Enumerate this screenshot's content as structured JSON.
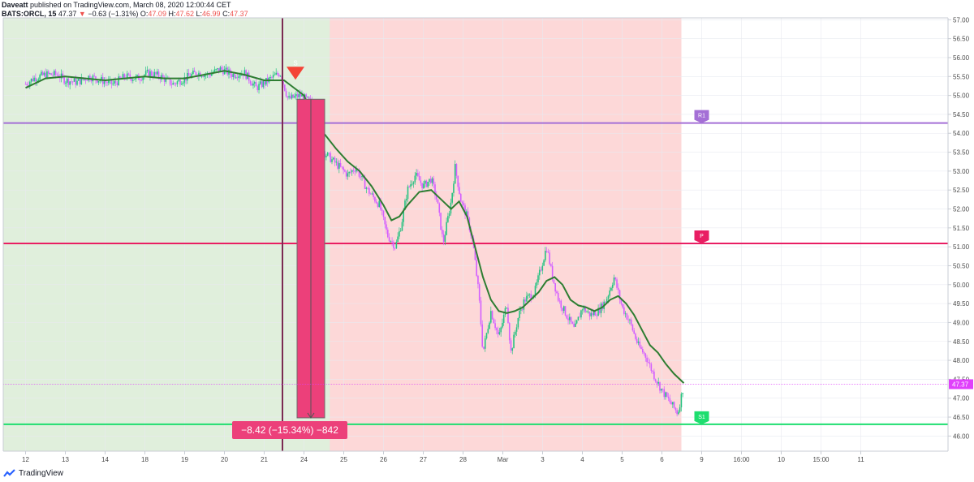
{
  "header": {
    "author": "Daveatt",
    "published": "published on TradingView.com, March 08, 2020 12:00:44 CET",
    "symbol": "BATS:ORCL, 15",
    "last": "47.37",
    "change_arrow": "▼",
    "change": "−0.63 (−1.31%)",
    "o_label": "O:",
    "o_value": "47.09",
    "h_label": "H:",
    "h_value": "47.62",
    "l_label": "L:",
    "l_value": "46.99",
    "c_label": "C:",
    "c_value": "47.37"
  },
  "footer": {
    "brand": "TradingView"
  },
  "colors": {
    "bull": "#26c281",
    "bear": "#d35fff",
    "ma": "#2e7d32",
    "green_zone": "#e0efdc",
    "red_zone": "#fdd8d8",
    "r1": "#a46fd6",
    "pivot": "#e91e63",
    "s1": "#1ede6f",
    "trade_box": "#ec407a",
    "signal_line": "#7b2a52",
    "price_label": "#e040fb"
  },
  "chart_data": {
    "type": "candlestick",
    "title": "",
    "ylim": [
      45.6,
      57.05
    ],
    "y_ticks": [
      "57.00",
      "56.50",
      "56.00",
      "55.50",
      "55.00",
      "54.50",
      "54.00",
      "53.50",
      "53.00",
      "52.50",
      "52.00",
      "51.50",
      "51.00",
      "50.50",
      "50.00",
      "49.50",
      "49.00",
      "48.50",
      "48.00",
      "47.50",
      "47.00",
      "46.50",
      "46.00"
    ],
    "x_ticks": [
      "12",
      "13",
      "14",
      "18",
      "19",
      "20",
      "21",
      "24",
      "25",
      "26",
      "27",
      "28",
      "Mar",
      "3",
      "4",
      "5",
      "6",
      "9",
      "16:00",
      "10",
      "15:00",
      "11"
    ],
    "last_price": "47.37",
    "levels": [
      {
        "name": "R1",
        "value": 54.27
      },
      {
        "name": "P",
        "value": 51.09
      },
      {
        "name": "S1",
        "value": 46.31
      }
    ],
    "signal": {
      "label": "S",
      "direction": "short",
      "x_session": 6.5,
      "price": 55.5
    },
    "trade": {
      "entry": 54.9,
      "exit": 46.48,
      "label": "−8.42 (−15.34%) −842"
    },
    "zones": [
      {
        "kind": "long",
        "from_session": 0,
        "to_session": 8.2
      },
      {
        "kind": "short",
        "from_session": 8.2,
        "to_session": 17
      }
    ],
    "close_path": [
      [
        0,
        55.3
      ],
      [
        0.2,
        55.45
      ],
      [
        0.5,
        55.55
      ],
      [
        0.8,
        55.55
      ],
      [
        1.0,
        55.4
      ],
      [
        1.3,
        55.35
      ],
      [
        1.6,
        55.5
      ],
      [
        1.9,
        55.4
      ],
      [
        2.2,
        55.3
      ],
      [
        2.5,
        55.5
      ],
      [
        2.8,
        55.45
      ],
      [
        3.1,
        55.6
      ],
      [
        3.4,
        55.5
      ],
      [
        3.7,
        55.3
      ],
      [
        4.0,
        55.45
      ],
      [
        4.3,
        55.6
      ],
      [
        4.6,
        55.55
      ],
      [
        4.9,
        55.7
      ],
      [
        5.2,
        55.55
      ],
      [
        5.5,
        55.6
      ],
      [
        5.8,
        55.2
      ],
      [
        6.1,
        55.4
      ],
      [
        6.4,
        55.6
      ],
      [
        6.6,
        54.9
      ],
      [
        6.9,
        55.0
      ],
      [
        7.2,
        54.8
      ],
      [
        7.5,
        53.5
      ],
      [
        7.8,
        53.2
      ],
      [
        8.1,
        52.9
      ],
      [
        8.3,
        53.1
      ],
      [
        8.6,
        52.5
      ],
      [
        8.9,
        52.1
      ],
      [
        9.1,
        51.3
      ],
      [
        9.3,
        51.0
      ],
      [
        9.45,
        51.6
      ],
      [
        9.6,
        52.5
      ],
      [
        9.8,
        52.9
      ],
      [
        10.0,
        52.6
      ],
      [
        10.2,
        52.8
      ],
      [
        10.35,
        52.2
      ],
      [
        10.5,
        51.1
      ],
      [
        10.7,
        52.2
      ],
      [
        10.8,
        53.1
      ],
      [
        10.95,
        52.2
      ],
      [
        11.1,
        51.8
      ],
      [
        11.25,
        51.1
      ],
      [
        11.4,
        49.7
      ],
      [
        11.5,
        48.2
      ],
      [
        11.7,
        49.3
      ],
      [
        11.9,
        48.6
      ],
      [
        12.1,
        49.5
      ],
      [
        12.2,
        48.2
      ],
      [
        12.4,
        49.2
      ],
      [
        12.55,
        49.6
      ],
      [
        12.8,
        49.8
      ],
      [
        13.0,
        50.6
      ],
      [
        13.1,
        51.0
      ],
      [
        13.25,
        50.2
      ],
      [
        13.4,
        49.6
      ],
      [
        13.6,
        49.2
      ],
      [
        13.8,
        48.8
      ],
      [
        14.0,
        49.4
      ],
      [
        14.2,
        49.2
      ],
      [
        14.4,
        49.3
      ],
      [
        14.6,
        49.6
      ],
      [
        14.8,
        50.2
      ],
      [
        15.0,
        49.4
      ],
      [
        15.2,
        49.0
      ],
      [
        15.4,
        48.4
      ],
      [
        15.6,
        48.1
      ],
      [
        15.8,
        47.6
      ],
      [
        16.0,
        47.2
      ],
      [
        16.2,
        46.9
      ],
      [
        16.4,
        46.6
      ],
      [
        16.55,
        47.37
      ]
    ],
    "ma_path": [
      [
        0,
        55.2
      ],
      [
        0.5,
        55.45
      ],
      [
        1.0,
        55.5
      ],
      [
        1.5,
        55.45
      ],
      [
        2.0,
        55.4
      ],
      [
        2.5,
        55.45
      ],
      [
        3.0,
        55.5
      ],
      [
        3.5,
        55.45
      ],
      [
        4.0,
        55.45
      ],
      [
        4.5,
        55.55
      ],
      [
        5.0,
        55.65
      ],
      [
        5.5,
        55.55
      ],
      [
        6.0,
        55.4
      ],
      [
        6.5,
        55.4
      ],
      [
        7.0,
        55.0
      ],
      [
        7.2,
        54.5
      ],
      [
        7.5,
        54.0
      ],
      [
        7.8,
        53.6
      ],
      [
        8.1,
        53.25
      ],
      [
        8.4,
        53.0
      ],
      [
        8.7,
        52.6
      ],
      [
        9.0,
        52.1
      ],
      [
        9.2,
        51.7
      ],
      [
        9.4,
        51.8
      ],
      [
        9.6,
        52.1
      ],
      [
        9.9,
        52.45
      ],
      [
        10.2,
        52.5
      ],
      [
        10.5,
        52.2
      ],
      [
        10.7,
        52.0
      ],
      [
        10.9,
        52.2
      ],
      [
        11.1,
        51.8
      ],
      [
        11.3,
        51.0
      ],
      [
        11.5,
        50.2
      ],
      [
        11.7,
        49.6
      ],
      [
        11.9,
        49.3
      ],
      [
        12.1,
        49.25
      ],
      [
        12.3,
        49.3
      ],
      [
        12.5,
        49.4
      ],
      [
        12.7,
        49.6
      ],
      [
        12.9,
        49.8
      ],
      [
        13.1,
        50.1
      ],
      [
        13.3,
        50.2
      ],
      [
        13.5,
        50.0
      ],
      [
        13.7,
        49.6
      ],
      [
        13.9,
        49.45
      ],
      [
        14.1,
        49.4
      ],
      [
        14.3,
        49.3
      ],
      [
        14.5,
        49.4
      ],
      [
        14.7,
        49.6
      ],
      [
        14.9,
        49.7
      ],
      [
        15.1,
        49.5
      ],
      [
        15.3,
        49.2
      ],
      [
        15.5,
        48.8
      ],
      [
        15.7,
        48.4
      ],
      [
        15.9,
        48.2
      ],
      [
        16.1,
        47.9
      ],
      [
        16.3,
        47.65
      ],
      [
        16.55,
        47.4
      ]
    ]
  }
}
